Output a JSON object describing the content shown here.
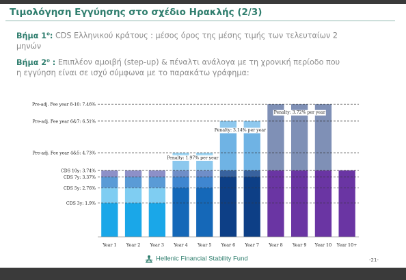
{
  "slide": {
    "title": "Τιμολόγηση Εγγύησης στο σχέδιο Ηρακλής (2/3)",
    "step1": {
      "label": "Βήμα 1",
      "label_sup": "ο",
      "label_colon": ":",
      "text": "CDS Ελληνικού κράτους : μέσος όρος της μέσης τιμής των τελευταίων 2",
      "text_cont": "μηνών"
    },
    "step2": {
      "label": "Βήμα 2",
      "label_sup": "ο",
      "label_colon": " :",
      "text": "Επιπλέον αμοιβή (step-up) & πέναλτι ανάλογα με τη χρονική περίοδο που",
      "text_cont": "η εγγύηση είναι σε ισχύ σύμφωνα με το παρακάτω γράφημα:"
    },
    "footer": {
      "org": "Hellenic Financial Stability Fund",
      "page": "-21-"
    }
  },
  "chart_data": {
    "type": "bar",
    "title": "",
    "categories": [
      "Year 1",
      "Year 2",
      "Year 3",
      "Year 4",
      "Year 5",
      "Year 6",
      "Year 7",
      "Year 8",
      "Year 9",
      "Year 10",
      "Year 10+"
    ],
    "ylim": [
      0,
      8.2
    ],
    "reference_lines": [
      {
        "label": "Pre-adj. Fee year 8-10: 7.46%",
        "value": 7.46
      },
      {
        "label": "Pre-adj. Fee year 6&7: 6.51%",
        "value": 6.51
      },
      {
        "label": "Pre-adj. Fee year 4&5: 4.73%",
        "value": 4.73
      },
      {
        "label": "CDS 10y: 3.74%",
        "value": 3.74
      },
      {
        "label": "CDS 7y: 3.37%",
        "value": 3.37
      },
      {
        "label": "CDS 5y: 2.76%",
        "value": 2.76
      },
      {
        "label": "CDS 3y: 1.9%",
        "value": 1.9
      }
    ],
    "bars": [
      {
        "category": "Year 1",
        "segments": [
          {
            "base": 0,
            "top": 1.9,
            "color": "#1aa7e8"
          },
          {
            "base": 1.9,
            "top": 2.76,
            "color": "#7fcdf2"
          },
          {
            "base": 2.76,
            "top": 3.37,
            "color": "#5a9bd6"
          },
          {
            "base": 3.37,
            "top": 3.74,
            "color": "#8d90c8"
          }
        ]
      },
      {
        "category": "Year 2",
        "segments": [
          {
            "base": 0,
            "top": 1.9,
            "color": "#1aa7e8"
          },
          {
            "base": 1.9,
            "top": 2.76,
            "color": "#7fcdf2"
          },
          {
            "base": 2.76,
            "top": 3.37,
            "color": "#5a9bd6"
          },
          {
            "base": 3.37,
            "top": 3.74,
            "color": "#8d90c8"
          }
        ]
      },
      {
        "category": "Year 3",
        "segments": [
          {
            "base": 0,
            "top": 1.9,
            "color": "#1aa7e8"
          },
          {
            "base": 1.9,
            "top": 2.76,
            "color": "#7fcdf2"
          },
          {
            "base": 2.76,
            "top": 3.37,
            "color": "#5a9bd6"
          },
          {
            "base": 3.37,
            "top": 3.74,
            "color": "#8d90c8"
          }
        ]
      },
      {
        "category": "Year 4",
        "segments": [
          {
            "base": 0,
            "top": 2.76,
            "color": "#1568b8"
          },
          {
            "base": 2.76,
            "top": 3.37,
            "color": "#3f86d0"
          },
          {
            "base": 3.37,
            "top": 3.74,
            "color": "#6f8ec8"
          },
          {
            "base": 3.74,
            "top": 4.45,
            "color": "#8cc8ee"
          },
          {
            "base": 4.45,
            "top": 4.73,
            "color": "#9fd6f4"
          }
        ]
      },
      {
        "category": "Year 5",
        "segments": [
          {
            "base": 0,
            "top": 2.76,
            "color": "#1568b8"
          },
          {
            "base": 2.76,
            "top": 3.37,
            "color": "#3f86d0"
          },
          {
            "base": 3.37,
            "top": 3.74,
            "color": "#6f8ec8"
          },
          {
            "base": 3.74,
            "top": 4.45,
            "color": "#8cc8ee"
          },
          {
            "base": 4.45,
            "top": 4.73,
            "color": "#9fd6f4"
          }
        ]
      },
      {
        "category": "Year 6",
        "segments": [
          {
            "base": 0,
            "top": 3.37,
            "color": "#0d3f86"
          },
          {
            "base": 3.37,
            "top": 3.74,
            "color": "#38629e"
          },
          {
            "base": 3.74,
            "top": 6.0,
            "color": "#6fb3e4"
          },
          {
            "base": 6.0,
            "top": 6.51,
            "color": "#8ec8ee"
          }
        ]
      },
      {
        "category": "Year 7",
        "segments": [
          {
            "base": 0,
            "top": 3.37,
            "color": "#0d3f86"
          },
          {
            "base": 3.37,
            "top": 3.74,
            "color": "#38629e"
          },
          {
            "base": 3.74,
            "top": 6.0,
            "color": "#6fb3e4"
          },
          {
            "base": 6.0,
            "top": 6.51,
            "color": "#8ec8ee"
          }
        ]
      },
      {
        "category": "Year 8",
        "segments": [
          {
            "base": 0,
            "top": 3.74,
            "color": "#6a35a3"
          },
          {
            "base": 3.74,
            "top": 7.46,
            "color": "#7f90b6"
          }
        ]
      },
      {
        "category": "Year 9",
        "segments": [
          {
            "base": 0,
            "top": 3.74,
            "color": "#6a35a3"
          },
          {
            "base": 3.74,
            "top": 7.46,
            "color": "#7f90b6"
          }
        ]
      },
      {
        "category": "Year 10",
        "segments": [
          {
            "base": 0,
            "top": 3.74,
            "color": "#6a35a3"
          },
          {
            "base": 3.74,
            "top": 7.46,
            "color": "#7f90b6"
          }
        ]
      },
      {
        "category": "Year 10+",
        "segments": [
          {
            "base": 0,
            "top": 3.74,
            "color": "#6a35a3"
          }
        ]
      }
    ],
    "annotations": [
      {
        "text": "Penalty: 1.97% per year",
        "category_from": 3,
        "category_to": 4,
        "value": 4.45
      },
      {
        "text": "Penalty: 3.14% per year",
        "category_from": 5,
        "category_to": 6,
        "value": 6.0
      },
      {
        "text": "Penalty: 3.72% per year",
        "category_from": 7,
        "category_to": 9,
        "value": 7.0
      }
    ],
    "colors": {
      "gridline": "#333333",
      "axis": "#999999"
    }
  }
}
